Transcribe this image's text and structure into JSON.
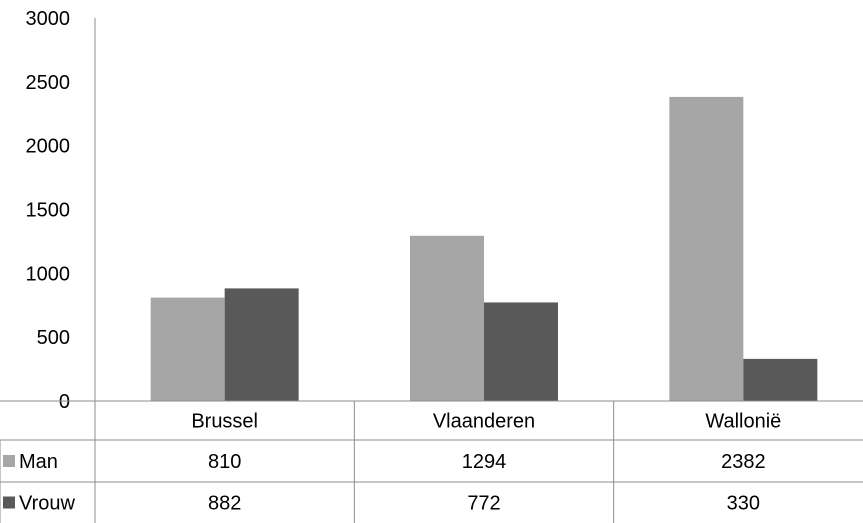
{
  "chart_data": {
    "type": "bar",
    "categories": [
      "Brussel",
      "Vlaanderen",
      "Wallonië"
    ],
    "series": [
      {
        "name": "Man",
        "values": [
          810,
          1294,
          2382
        ],
        "color": "#a6a6a6"
      },
      {
        "name": "Vrouw",
        "values": [
          882,
          772,
          330
        ],
        "color": "#595959"
      }
    ],
    "ylim": [
      0,
      3000
    ],
    "yticks": [
      0,
      500,
      1000,
      1500,
      2000,
      2500,
      3000
    ],
    "grid": false,
    "legend": "data table below chart"
  }
}
